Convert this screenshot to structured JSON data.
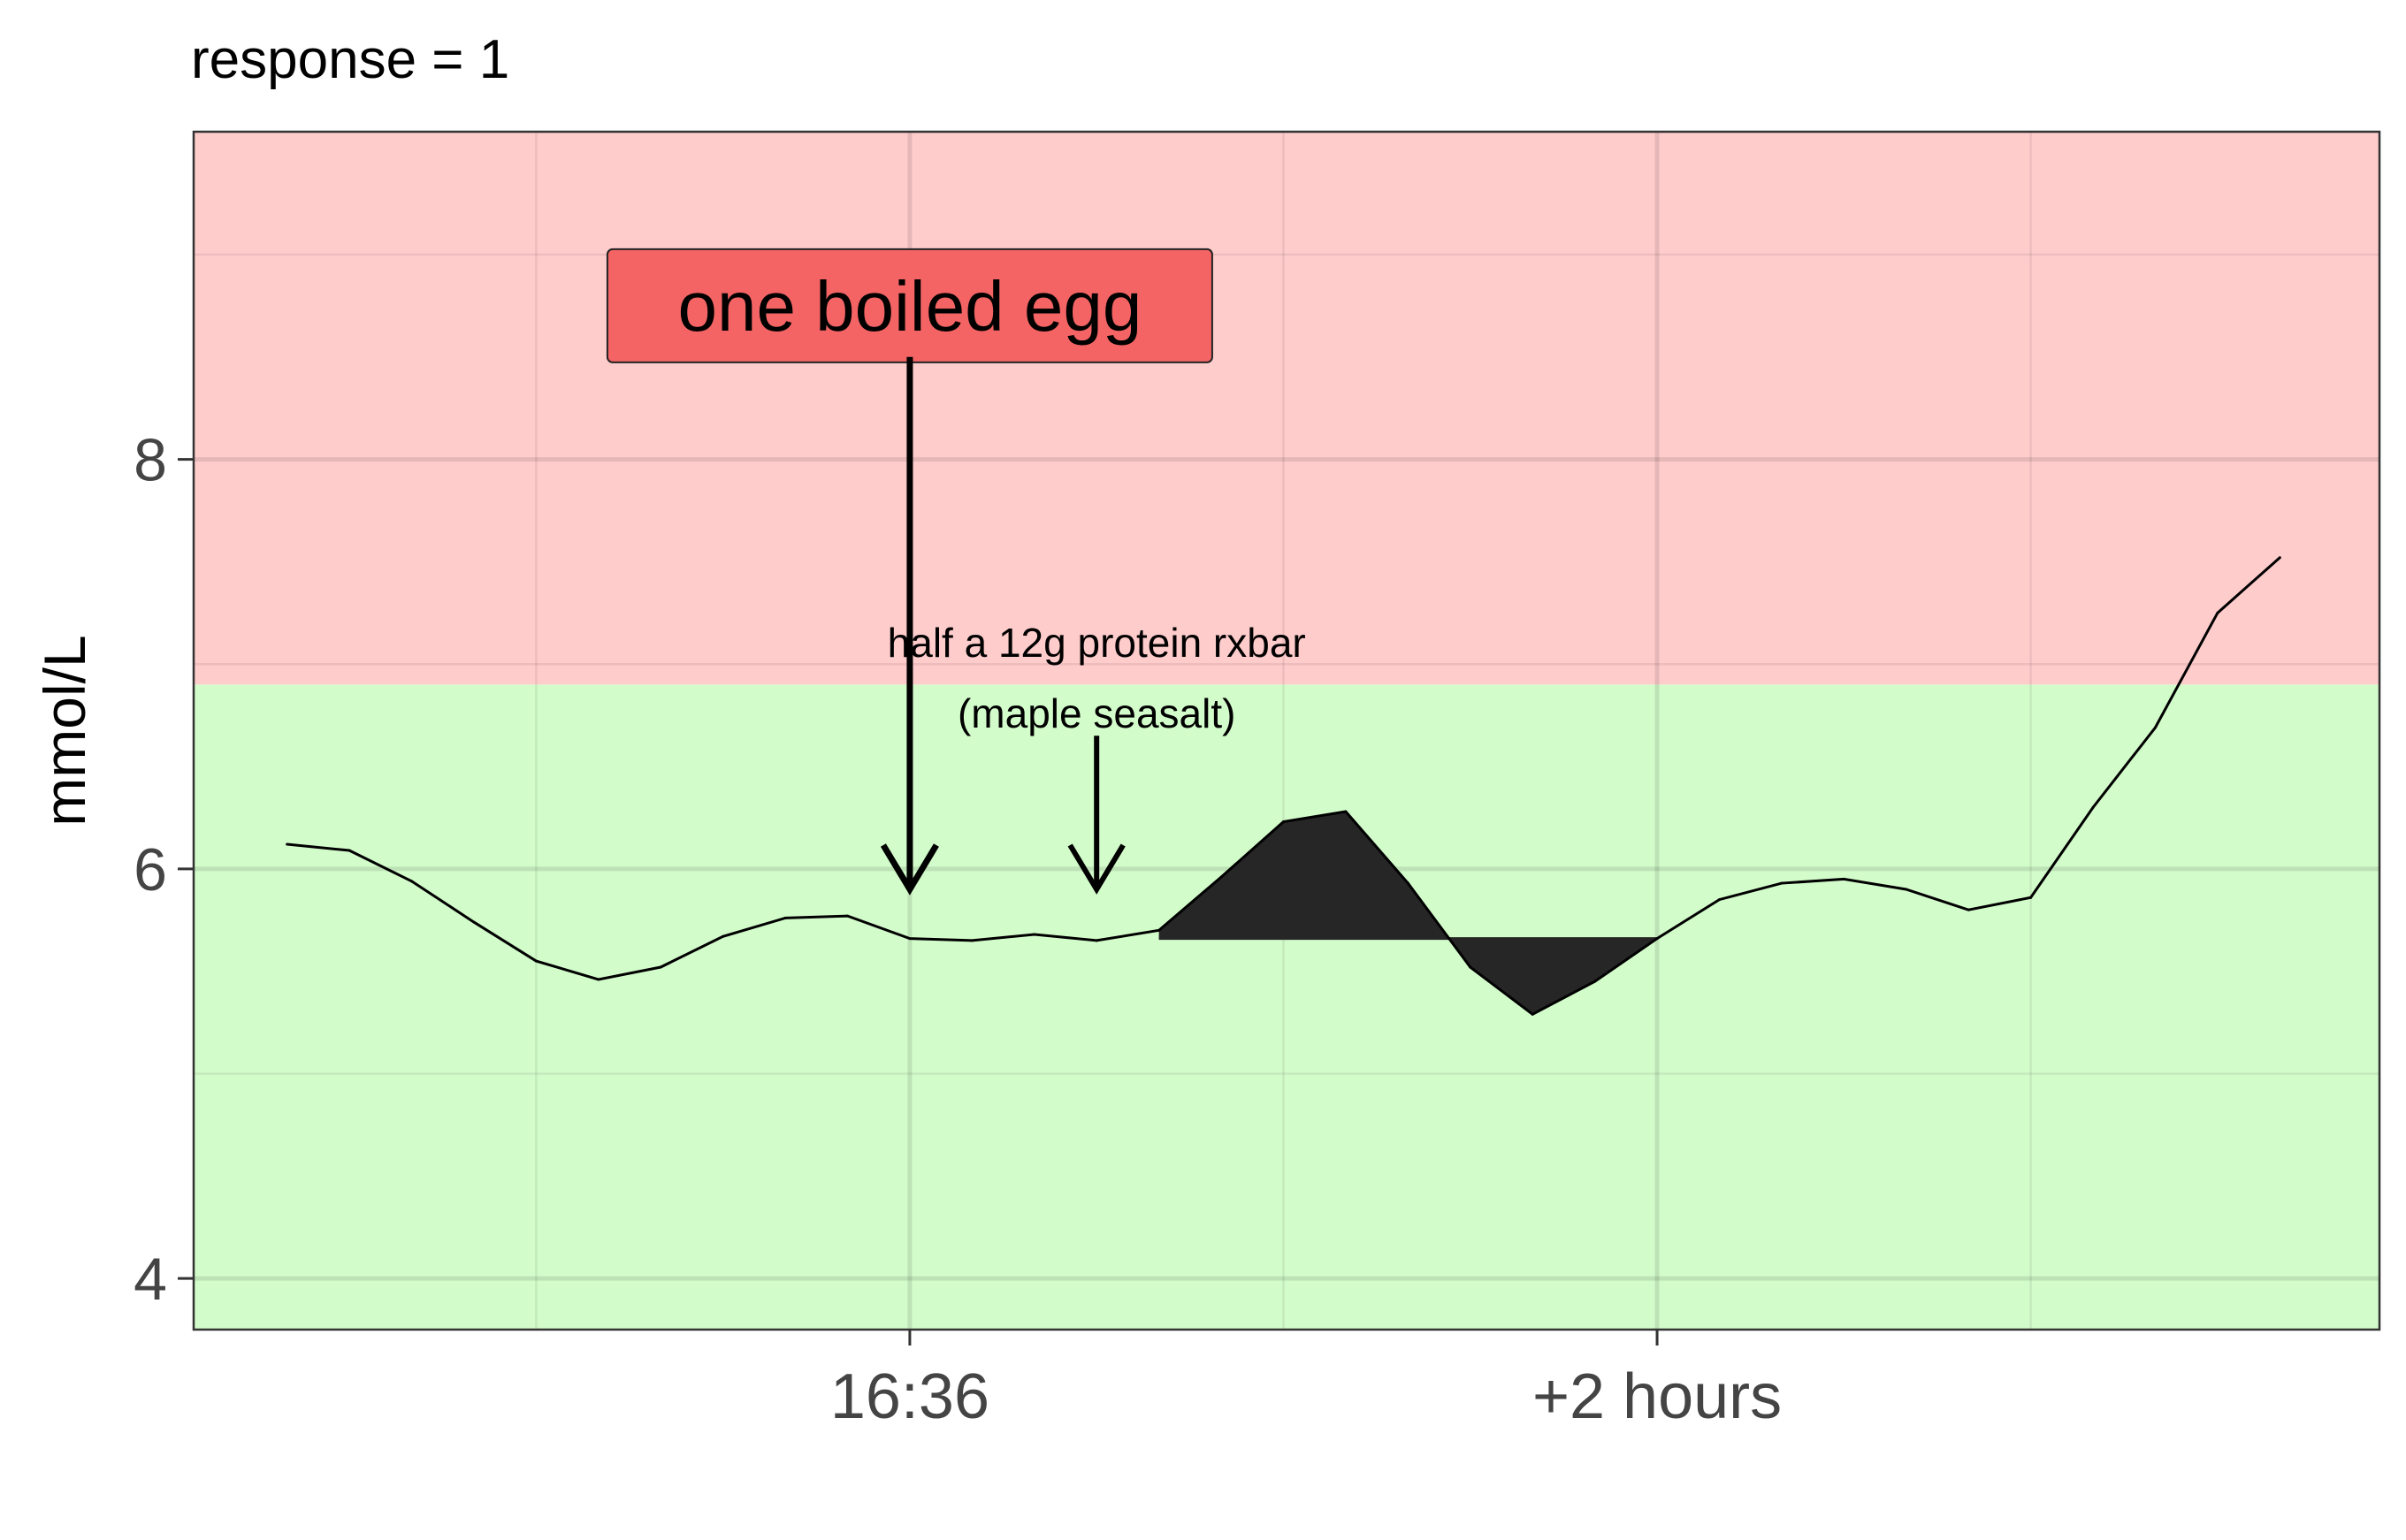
{
  "chart_data": {
    "type": "line",
    "title": "response = 1",
    "ylabel": "mmol/L",
    "xlabel": "",
    "x_units": "minutes relative to 16:36",
    "xlim": [
      -115,
      236
    ],
    "ylim": [
      3.75,
      9.6
    ],
    "y_ticks": [
      4,
      6,
      8
    ],
    "x_ticks": [
      {
        "value": 0,
        "label": "16:36"
      },
      {
        "value": 120,
        "label": "+2 hours"
      }
    ],
    "x_minor_grid": [
      -60,
      60,
      180
    ],
    "y_minor_grid": [
      5,
      7,
      9
    ],
    "grid": true,
    "zones": [
      {
        "name": "high",
        "from": 6.9,
        "to": 9.6,
        "color": "#ffcccc"
      },
      {
        "name": "normal",
        "from": 3.75,
        "to": 6.9,
        "color": "#d3fccb"
      }
    ],
    "series": [
      {
        "color": "#000000",
        "x": [
          -100,
          -90,
          -80,
          -70,
          -60,
          -50,
          -40,
          -30,
          -20,
          -10,
          0,
          10,
          20,
          30,
          40,
          50,
          60,
          70,
          80,
          90,
          100,
          110,
          120,
          130,
          140,
          150,
          160,
          170,
          180,
          190,
          200,
          210,
          220
        ],
        "y": [
          6.12,
          6.09,
          5.94,
          5.74,
          5.55,
          5.46,
          5.52,
          5.67,
          5.76,
          5.77,
          5.66,
          5.65,
          5.68,
          5.65,
          5.7,
          5.96,
          6.23,
          6.28,
          5.93,
          5.52,
          5.29,
          5.45,
          5.66,
          5.85,
          5.93,
          5.95,
          5.9,
          5.8,
          5.86,
          6.3,
          6.69,
          7.25,
          7.52
        ]
      }
    ],
    "response_baseline": 5.66,
    "response_window": [
      40,
      120
    ],
    "response_fill_color": "#262626",
    "annotations": [
      {
        "text": "one boiled egg",
        "x": 0,
        "label_y": 8.75,
        "arrow_from_y": 8.5,
        "arrow_to_y": 5.9,
        "boxed": true,
        "box_color": "#f46464"
      },
      {
        "text": "half a 12g protein rxbar\n(maple seasalt)",
        "line1": "half a 12g protein rxbar",
        "line2": "(maple seasalt)",
        "x": 30,
        "label_y": 6.85,
        "arrow_from_y": 6.65,
        "arrow_to_y": 5.9,
        "boxed": false
      }
    ]
  }
}
